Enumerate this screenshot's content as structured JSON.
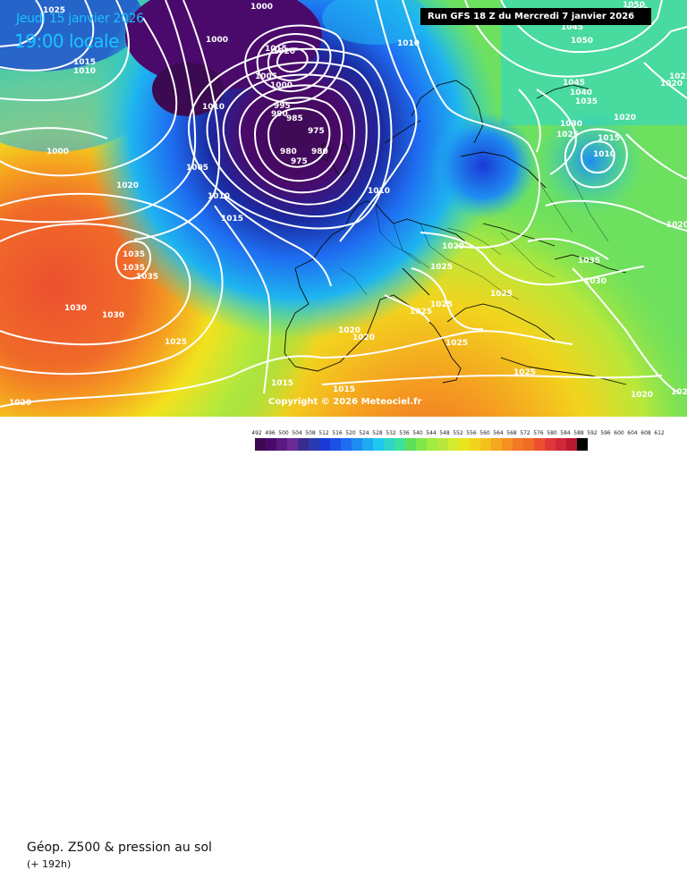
{
  "header": {
    "date": "Jeudi 15 janvier 2026",
    "time": "19:00 locale",
    "run": "Run GFS 18 Z du Mercredi 7 janvier 2026"
  },
  "footer": {
    "parameter": "Géop. Z500 & pression au sol",
    "forecast_hour": "(+ 192h)",
    "copyright": "Copyright © 2026 Meteociel.fr"
  },
  "colors": {
    "bg_purple": "#4a0a6b",
    "low_core": "#3c0a50",
    "blue_deep": "#1a3ad6",
    "blue": "#1e6cf0",
    "cyan": "#1eb4f0",
    "teal": "#2fd6c8",
    "green": "#5ee05a",
    "yellowgreen": "#b8e83a",
    "yellow": "#f2e21e",
    "orange": "#f5a020",
    "orange_red": "#f06a28",
    "isobar": "#ffffff",
    "title_cyan": "#19c3ff"
  },
  "scale": {
    "labels": [
      "492",
      "496",
      "500",
      "504",
      "508",
      "512",
      "516",
      "520",
      "524",
      "528",
      "532",
      "536",
      "540",
      "544",
      "548",
      "552",
      "556",
      "560",
      "564",
      "568",
      "572",
      "576",
      "580",
      "584",
      "588",
      "592",
      "596",
      "600",
      "604",
      "608",
      "612"
    ],
    "colors": [
      "#3c0a50",
      "#4a0a6b",
      "#5a1a80",
      "#6a2a96",
      "#3a2a90",
      "#2a3ab0",
      "#1a3ad6",
      "#1e50e6",
      "#1e6cf0",
      "#1e8cf0",
      "#1eaaf0",
      "#1ec8f0",
      "#2fd6c8",
      "#3ee0a0",
      "#5ee05a",
      "#80e848",
      "#a0ec40",
      "#b8e83a",
      "#d4ea2c",
      "#e8e41e",
      "#f2d41e",
      "#f5c01e",
      "#f5a820",
      "#f59020",
      "#f27824",
      "#f06a28",
      "#ec5030",
      "#e03838",
      "#d02838",
      "#b81830",
      "#000000"
    ]
  },
  "isobar_labels": [
    {
      "id": "lbl-1025-top",
      "text": "1025"
    },
    {
      "id": "lbl-1000-top",
      "text": "1000"
    },
    {
      "id": "lbl-1000-w",
      "text": "1000"
    },
    {
      "id": "lbl-1010-w",
      "text": "1010"
    },
    {
      "id": "lbl-1015-w",
      "text": "1015"
    },
    {
      "id": "lbl-1015-a",
      "text": "1015"
    },
    {
      "id": "lbl-1020-a",
      "text": "1020"
    },
    {
      "id": "lbl-1005-a",
      "text": "1005"
    },
    {
      "id": "lbl-1000-a",
      "text": "1000"
    },
    {
      "id": "lbl-1010-a",
      "text": "1010"
    },
    {
      "id": "lbl-995",
      "text": "995"
    },
    {
      "id": "lbl-990",
      "text": "990"
    },
    {
      "id": "lbl-985",
      "text": "985"
    },
    {
      "id": "lbl-975-a",
      "text": "975"
    },
    {
      "id": "lbl-980-a",
      "text": "980"
    },
    {
      "id": "lbl-980-b",
      "text": "980"
    },
    {
      "id": "lbl-975-b",
      "text": "975"
    },
    {
      "id": "lbl-1000-sw",
      "text": "1000"
    },
    {
      "id": "lbl-1005-mid",
      "text": "1005"
    },
    {
      "id": "lbl-1010-mid",
      "text": "1010"
    },
    {
      "id": "lbl-1015-mid",
      "text": "1015"
    },
    {
      "id": "lbl-1020-sw",
      "text": "1020"
    },
    {
      "id": "lbl-1035-a",
      "text": "1035"
    },
    {
      "id": "lbl-1035-b",
      "text": "1035"
    },
    {
      "id": "lbl-1035-c",
      "text": "1035"
    },
    {
      "id": "lbl-1030-a",
      "text": "1030"
    },
    {
      "id": "lbl-1030-b",
      "text": "1030"
    },
    {
      "id": "lbl-1025-sw",
      "text": "1025"
    },
    {
      "id": "lbl-1020-bl",
      "text": "1020"
    },
    {
      "id": "lbl-1010-n",
      "text": "1010"
    },
    {
      "id": "lbl-1010-c",
      "text": "1010"
    },
    {
      "id": "lbl-1020-c",
      "text": "1020"
    },
    {
      "id": "lbl-1025-c",
      "text": "1025"
    },
    {
      "id": "lbl-1025-d",
      "text": "1025"
    },
    {
      "id": "lbl-1025-e",
      "text": "1025"
    },
    {
      "id": "lbl-1020-f",
      "text": "1020"
    },
    {
      "id": "lbl-1020-g",
      "text": "1020"
    },
    {
      "id": "lbl-1025-h",
      "text": "1025"
    },
    {
      "id": "lbl-1025-i",
      "text": "1025"
    },
    {
      "id": "lbl-1015-s",
      "text": "1015"
    },
    {
      "id": "lbl-1015-t",
      "text": "1015"
    },
    {
      "id": "lbl-1025-se",
      "text": "1025"
    },
    {
      "id": "lbl-1020-se",
      "text": "1020"
    },
    {
      "id": "lbl-1050-a",
      "text": "1050"
    },
    {
      "id": "lbl-1045-a",
      "text": "1045"
    },
    {
      "id": "lbl-1050-b",
      "text": "1050"
    },
    {
      "id": "lbl-1045-b",
      "text": "1045"
    },
    {
      "id": "lbl-1040",
      "text": "1040"
    },
    {
      "id": "lbl-1035-e",
      "text": "1035"
    },
    {
      "id": "lbl-1030-e",
      "text": "1030"
    },
    {
      "id": "lbl-1025-ne",
      "text": "1025"
    },
    {
      "id": "lbl-1020-ne",
      "text": "1020"
    },
    {
      "id": "lbl-1015-ne",
      "text": "1015"
    },
    {
      "id": "lbl-1010-ne",
      "text": "1010"
    },
    {
      "id": "lbl-1020-fe",
      "text": "1020"
    },
    {
      "id": "lbl-1035-east",
      "text": "1035"
    },
    {
      "id": "lbl-1030-east",
      "text": "1030"
    },
    {
      "id": "lbl-1025-east",
      "text": "1025"
    },
    {
      "id": "lbl-1020-east",
      "text": "1020"
    },
    {
      "id": "lbl-1025-corner",
      "text": "1025"
    },
    {
      "id": "lbl-1010-top",
      "text": "1010"
    }
  ]
}
